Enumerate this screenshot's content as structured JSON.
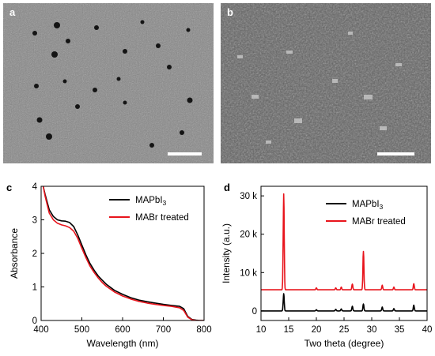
{
  "panels": {
    "a": {
      "label": "a"
    },
    "b": {
      "label": "b"
    },
    "c": {
      "label": "c"
    },
    "d": {
      "label": "d"
    }
  },
  "chart_data": [
    {
      "panel": "c",
      "type": "line",
      "xlabel": "Wavelength (nm)",
      "ylabel": "Absorbance",
      "xlim": [
        400,
        800
      ],
      "ylim": [
        0,
        4
      ],
      "xticks": [
        400,
        500,
        600,
        700,
        800
      ],
      "yticks": [
        0,
        1,
        2,
        3,
        4
      ],
      "legend_placement": "top-right",
      "series": [
        {
          "name": "MAPbI",
          "name_sub": "3",
          "color": "#000000",
          "x": [
            405,
            410,
            420,
            430,
            440,
            450,
            460,
            470,
            480,
            490,
            500,
            510,
            520,
            530,
            540,
            550,
            560,
            580,
            600,
            620,
            640,
            660,
            680,
            700,
            720,
            740,
            750,
            760,
            770,
            780,
            790,
            800
          ],
          "y": [
            4.0,
            3.75,
            3.3,
            3.1,
            3.0,
            2.97,
            2.96,
            2.92,
            2.8,
            2.55,
            2.25,
            1.95,
            1.7,
            1.5,
            1.33,
            1.2,
            1.08,
            0.9,
            0.78,
            0.68,
            0.61,
            0.56,
            0.52,
            0.48,
            0.45,
            0.42,
            0.35,
            0.12,
            0.03,
            0.01,
            0.0,
            0.0
          ]
        },
        {
          "name": "MABr treated",
          "color": "#e8141c",
          "x": [
            405,
            410,
            420,
            430,
            440,
            450,
            460,
            470,
            480,
            490,
            500,
            510,
            520,
            530,
            540,
            550,
            560,
            580,
            600,
            620,
            640,
            660,
            680,
            700,
            720,
            740,
            750,
            760,
            770,
            780,
            790,
            800
          ],
          "y": [
            4.0,
            3.7,
            3.2,
            3.0,
            2.9,
            2.85,
            2.82,
            2.77,
            2.66,
            2.45,
            2.15,
            1.87,
            1.62,
            1.43,
            1.27,
            1.13,
            1.02,
            0.85,
            0.73,
            0.64,
            0.57,
            0.52,
            0.48,
            0.45,
            0.42,
            0.38,
            0.3,
            0.1,
            0.02,
            0.0,
            0.0,
            0.0
          ]
        }
      ]
    },
    {
      "panel": "d",
      "type": "line",
      "xlabel": "Two theta (degree)",
      "ylabel": "Intensity (a.u.)",
      "xlim": [
        10,
        40
      ],
      "ylim": [
        -2500,
        32500
      ],
      "xticks": [
        10,
        15,
        20,
        25,
        30,
        35,
        40
      ],
      "yticks": [
        0,
        10000,
        20000,
        30000
      ],
      "ytick_labels": [
        "0",
        "10 k",
        "20 k",
        "30 k"
      ],
      "legend_placement": "top-right",
      "series": [
        {
          "name": "MAPbI",
          "name_sub": "3",
          "color": "#000000",
          "baseline": 0,
          "peaks": [
            [
              14.1,
              4500
            ],
            [
              20.0,
              300
            ],
            [
              23.5,
              400
            ],
            [
              24.5,
              500
            ],
            [
              26.5,
              1200
            ],
            [
              28.5,
              1800
            ],
            [
              31.9,
              1000
            ],
            [
              34.0,
              600
            ],
            [
              37.6,
              1500
            ]
          ]
        },
        {
          "name": "MABr treated",
          "color": "#e8141c",
          "baseline": 5500,
          "peaks": [
            [
              14.1,
              25000
            ],
            [
              20.0,
              500
            ],
            [
              23.5,
              500
            ],
            [
              24.5,
              700
            ],
            [
              26.5,
              1500
            ],
            [
              28.5,
              10000
            ],
            [
              31.9,
              1200
            ],
            [
              34.0,
              700
            ],
            [
              37.6,
              1600
            ]
          ]
        }
      ]
    }
  ]
}
